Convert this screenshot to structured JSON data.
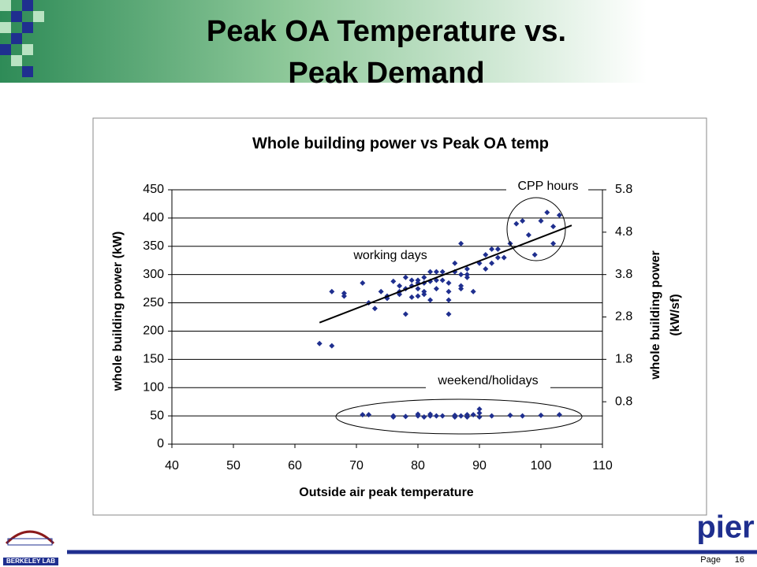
{
  "slide": {
    "title_lines": [
      "Peak OA Temperature vs.",
      "Peak Demand"
    ],
    "left_logo": "BERKELEY LAB",
    "right_logo": "pier",
    "page_label": "Page",
    "page_number": 16
  },
  "chart_data": {
    "type": "scatter",
    "title": "Whole building power vs Peak OA temp",
    "x_label": "Outside air peak temperature",
    "y_label": "whole building power (kW)",
    "y2_label": [
      "whole building  power",
      "(kW/sf)"
    ],
    "annotations": [
      "CPP hours"
    ],
    "xlim": [
      40,
      110
    ],
    "xticks": [
      40,
      50,
      60,
      70,
      80,
      90,
      100,
      110
    ],
    "ylim": [
      0,
      450
    ],
    "yticks": [
      0,
      50,
      100,
      150,
      200,
      250,
      300,
      350,
      400,
      450
    ],
    "y2lim": [
      -0.2,
      5.8
    ],
    "y2ticks": [
      0.8,
      1.8,
      2.8,
      3.8,
      4.8,
      5.8
    ],
    "grid": true,
    "series": [
      {
        "name": "working days",
        "color": "#1f2f8f",
        "x": [
          64,
          66,
          66,
          68,
          68,
          71,
          72,
          73,
          74,
          75,
          75,
          76,
          77,
          77,
          77,
          78,
          78,
          78,
          79,
          79,
          79,
          80,
          80,
          80,
          80,
          81,
          81,
          81,
          81,
          82,
          82,
          82,
          83,
          83,
          83,
          84,
          84,
          85,
          85,
          85,
          85,
          86,
          86,
          87,
          87,
          87,
          87,
          88,
          88,
          88,
          89,
          90,
          91,
          91,
          92,
          92,
          93,
          93,
          94,
          95,
          96,
          97,
          98,
          99,
          100,
          101,
          102,
          102,
          103
        ],
        "values": [
          178,
          174,
          270,
          267,
          262,
          285,
          250,
          240,
          270,
          262,
          258,
          288,
          280,
          270,
          265,
          295,
          275,
          230,
          260,
          280,
          290,
          285,
          275,
          262,
          290,
          270,
          295,
          285,
          265,
          305,
          288,
          255,
          305,
          290,
          275,
          305,
          290,
          285,
          270,
          255,
          230,
          320,
          305,
          355,
          300,
          280,
          275,
          310,
          300,
          295,
          270,
          320,
          310,
          335,
          345,
          320,
          345,
          330,
          330,
          355,
          390,
          395,
          370,
          335,
          395,
          410,
          355,
          385,
          405
        ]
      },
      {
        "name": "weekend/holidays",
        "color": "#1f2f8f",
        "x": [
          71,
          72,
          76,
          76,
          78,
          80,
          80,
          81,
          82,
          82,
          83,
          84,
          86,
          86,
          87,
          88,
          88,
          89,
          90,
          90,
          90,
          92,
          95,
          97,
          100,
          103
        ],
        "values": [
          52,
          52,
          48,
          50,
          49,
          53,
          50,
          48,
          50,
          53,
          50,
          50,
          48,
          51,
          50,
          48,
          52,
          52,
          55,
          62,
          48,
          50,
          51,
          50,
          51,
          52
        ]
      }
    ],
    "trendline": {
      "x": [
        64,
        105
      ],
      "values": [
        215,
        387
      ],
      "color": "#000000"
    }
  }
}
